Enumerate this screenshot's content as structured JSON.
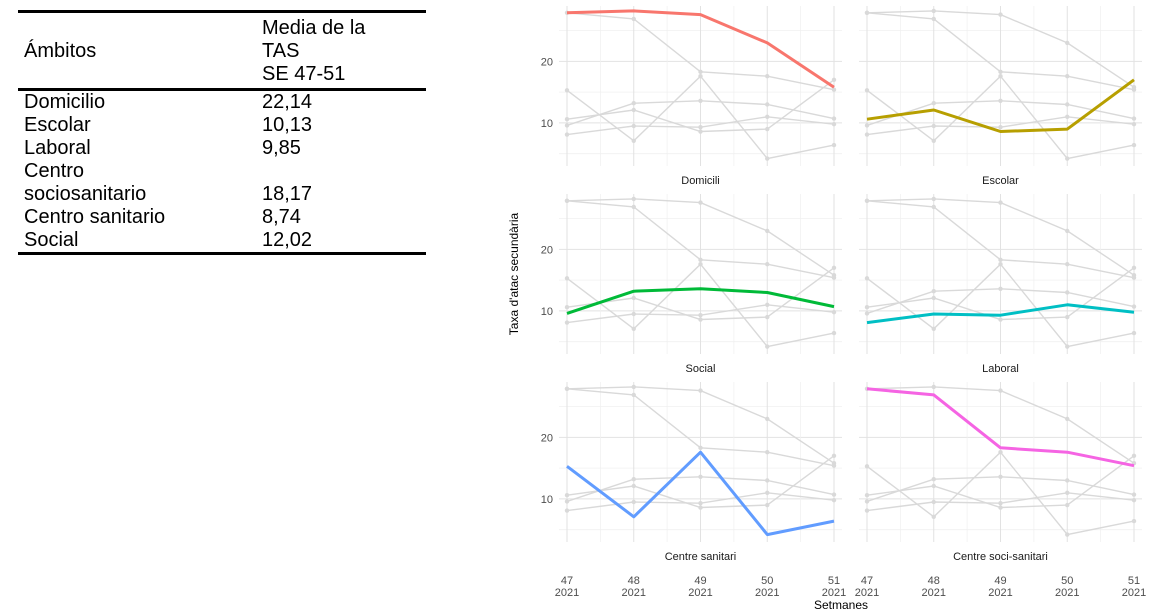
{
  "table": {
    "headers": [
      "Ámbitos",
      "Media de la\nTAS\nSE 47-51"
    ],
    "rows": [
      [
        "Domicilio",
        "22,14"
      ],
      [
        "Escolar",
        "10,13"
      ],
      [
        "Laboral",
        "9,85"
      ],
      [
        "Centro\nsociosanitario",
        "18,17"
      ],
      [
        "Centro sanitario",
        "8,74"
      ],
      [
        "Social",
        "12,02"
      ]
    ]
  },
  "chart_data": {
    "type": "line",
    "layout": "facet-grid 3x2",
    "x": [
      "47\n2021",
      "48\n2021",
      "49\n2021",
      "50\n2021",
      "51\n2021"
    ],
    "xlabel": "Setmanes",
    "ylabel": "Taxa d'atac secundària",
    "ylim": [
      3,
      29
    ],
    "yticks": [
      10,
      20
    ],
    "grid": true,
    "series": [
      {
        "name": "Domicili",
        "color": "#F8766D",
        "values": [
          27.9,
          28.2,
          27.6,
          23.0,
          15.8
        ]
      },
      {
        "name": "Escolar",
        "color": "#B79F00",
        "values": [
          10.6,
          12.1,
          8.6,
          9.0,
          17.0
        ]
      },
      {
        "name": "Social",
        "color": "#00BA38",
        "values": [
          9.6,
          13.2,
          13.6,
          13.0,
          10.7
        ]
      },
      {
        "name": "Laboral",
        "color": "#00BFC4",
        "values": [
          8.1,
          9.5,
          9.3,
          11.0,
          9.8
        ]
      },
      {
        "name": "Centre sanitari",
        "color": "#619CFF",
        "values": [
          15.3,
          7.1,
          17.6,
          4.2,
          6.4
        ]
      },
      {
        "name": "Centre soci-sanitari",
        "color": "#F564E3",
        "values": [
          27.9,
          26.9,
          18.3,
          17.6,
          15.4
        ]
      }
    ]
  }
}
